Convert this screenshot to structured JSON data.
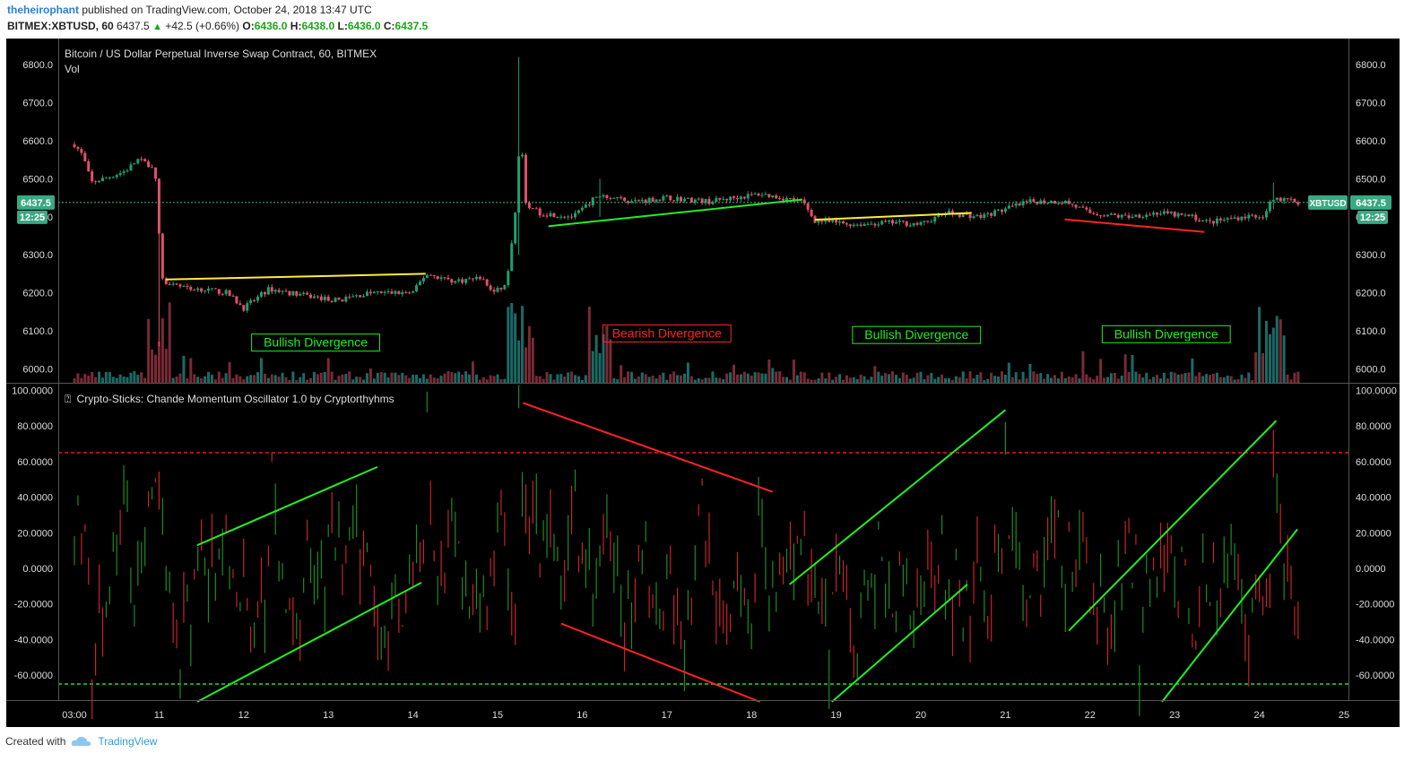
{
  "header": {
    "author": "theheirophant",
    "published_text": "published on TradingView.com, October 24, 2018 13:47 UTC",
    "symbol": "BITMEX:XBTUSD, 60",
    "last_price": "6437.5",
    "change": "+42.5 (+0.66%)",
    "o_label": "O:",
    "o_value": "6436.0",
    "h_label": "H:",
    "h_value": "6438.0",
    "l_label": "L:",
    "l_value": "6436.0",
    "c_label": "C:",
    "c_value": "6437.5"
  },
  "footer": {
    "created_with": "Created with",
    "brand": "TradingView"
  },
  "colors": {
    "up": "#1f9e6f",
    "down": "#e0506a",
    "vol_up": "#1a6b66",
    "vol_down": "#7a2a36",
    "green_line": "#22ee22",
    "red_line": "#ff2222",
    "yellow_line": "#ffee33",
    "bg": "#000000"
  },
  "chart_data": [
    {
      "type": "candlestick",
      "title": "Bitcoin / US Dollar Perpetual Inverse Swap Contract, 60, BITMEX",
      "volume_label": "Vol",
      "price_tag": "6437.5",
      "time_tag": "12:25",
      "symbol_tag": "XBTUSD",
      "x_ticks": [
        "03:00",
        "11",
        "12",
        "13",
        "14",
        "15",
        "16",
        "17",
        "18",
        "19",
        "20",
        "21",
        "22",
        "23",
        "24",
        "25"
      ],
      "y_ticks": [
        "6800.0",
        "6700.0",
        "6600.0",
        "6500.0",
        "6400.0",
        "6300.0",
        "6200.0",
        "6100.0",
        "6000.0"
      ],
      "ylim": [
        5970,
        6840
      ],
      "last_price": 6437.5,
      "price_path": [
        {
          "day": 10.0,
          "price": 6590
        },
        {
          "day": 10.1,
          "price": 6560
        },
        {
          "day": 10.2,
          "price": 6490
        },
        {
          "day": 10.35,
          "price": 6500
        },
        {
          "day": 10.6,
          "price": 6520
        },
        {
          "day": 10.75,
          "price": 6550
        },
        {
          "day": 10.95,
          "price": 6530
        },
        {
          "day": 11.0,
          "price": 6350
        },
        {
          "day": 11.05,
          "price": 6220
        },
        {
          "day": 11.5,
          "price": 6210
        },
        {
          "day": 11.8,
          "price": 6200
        },
        {
          "day": 12.0,
          "price": 6160
        },
        {
          "day": 12.3,
          "price": 6210
        },
        {
          "day": 12.8,
          "price": 6190
        },
        {
          "day": 13.1,
          "price": 6180
        },
        {
          "day": 13.5,
          "price": 6200
        },
        {
          "day": 14.0,
          "price": 6200
        },
        {
          "day": 14.15,
          "price": 6250
        },
        {
          "day": 14.5,
          "price": 6230
        },
        {
          "day": 14.8,
          "price": 6240
        },
        {
          "day": 14.95,
          "price": 6200
        },
        {
          "day": 15.1,
          "price": 6220
        },
        {
          "day": 15.2,
          "price": 6380
        },
        {
          "day": 15.27,
          "price": 6640
        },
        {
          "day": 15.33,
          "price": 6430
        },
        {
          "day": 15.5,
          "price": 6410
        },
        {
          "day": 15.9,
          "price": 6400
        },
        {
          "day": 16.2,
          "price": 6460
        },
        {
          "day": 16.6,
          "price": 6440
        },
        {
          "day": 17.0,
          "price": 6450
        },
        {
          "day": 17.5,
          "price": 6440
        },
        {
          "day": 18.1,
          "price": 6460
        },
        {
          "day": 18.6,
          "price": 6440
        },
        {
          "day": 18.75,
          "price": 6390
        },
        {
          "day": 19.2,
          "price": 6380
        },
        {
          "day": 19.7,
          "price": 6385
        },
        {
          "day": 20.0,
          "price": 6380
        },
        {
          "day": 20.3,
          "price": 6410
        },
        {
          "day": 20.7,
          "price": 6400
        },
        {
          "day": 21.0,
          "price": 6420
        },
        {
          "day": 21.3,
          "price": 6440
        },
        {
          "day": 21.7,
          "price": 6440
        },
        {
          "day": 22.0,
          "price": 6410
        },
        {
          "day": 22.4,
          "price": 6400
        },
        {
          "day": 22.8,
          "price": 6410
        },
        {
          "day": 23.2,
          "price": 6400
        },
        {
          "day": 23.4,
          "price": 6385
        },
        {
          "day": 23.8,
          "price": 6400
        },
        {
          "day": 24.05,
          "price": 6405
        },
        {
          "day": 24.15,
          "price": 6450
        },
        {
          "day": 24.5,
          "price": 6437.5
        }
      ],
      "spikes": [
        {
          "day": 15.27,
          "high": 6820,
          "low": 6300
        },
        {
          "day": 11.0,
          "high": 6480,
          "low": 6060
        },
        {
          "day": 16.2,
          "high": 6500,
          "low": 6400
        },
        {
          "day": 24.15,
          "high": 6490,
          "low": 6420
        }
      ],
      "trendlines": [
        {
          "color": "yellow",
          "from": {
            "day": 11.08,
            "price": 6235
          },
          "to": {
            "day": 14.15,
            "price": 6250
          }
        },
        {
          "color": "green",
          "from": {
            "day": 15.6,
            "price": 6375
          },
          "to": {
            "day": 18.6,
            "price": 6445
          }
        },
        {
          "color": "yellow",
          "from": {
            "day": 18.75,
            "price": 6392
          },
          "to": {
            "day": 20.6,
            "price": 6410
          }
        },
        {
          "color": "red",
          "from": {
            "day": 21.7,
            "price": 6393
          },
          "to": {
            "day": 23.35,
            "price": 6360
          }
        }
      ],
      "annotations": [
        {
          "text": "Bullish Divergence",
          "color": "green",
          "day": 12.85,
          "price": 6068
        },
        {
          "text": "Bearish Divergence",
          "color": "red",
          "day": 17.0,
          "price": 6092
        },
        {
          "text": "Bullish Divergence",
          "color": "green",
          "day": 19.95,
          "price": 6088
        },
        {
          "text": "Bullish Divergence",
          "color": "green",
          "day": 22.9,
          "price": 6090
        }
      ]
    },
    {
      "type": "oscillator",
      "title": "Crypto-Sticks: Chande Momentum Oscillator 1.0 by Cryptorthyhms",
      "title_prefix_glyph": "⍰",
      "title_parts": [
        "Crypto-Sticks",
        ": Chande Momentum Oscillator 1.0 by Cryptorthyhms"
      ],
      "y_ticks": [
        "100.0000",
        "80.0000",
        "60.0000",
        "40.0000",
        "20.0000",
        "0.0000",
        "-20.0000",
        "-40.0000",
        "-60.0000"
      ],
      "ylim": [
        -75,
        100
      ],
      "overbought": 65,
      "oversold": -65,
      "peaks": [
        {
          "day": 14.15,
          "value": 92
        },
        {
          "day": 15.27,
          "value": 95
        },
        {
          "day": 18.1,
          "value": 45
        },
        {
          "day": 21.0,
          "value": 80
        },
        {
          "day": 24.15,
          "value": 75
        },
        {
          "day": 12.35,
          "value": 62
        },
        {
          "day": 10.6,
          "value": 52
        },
        {
          "day": 10.2,
          "value": -65
        },
        {
          "day": 11.25,
          "value": -60
        },
        {
          "day": 22.6,
          "value": -62
        },
        {
          "day": 18.9,
          "value": -55
        }
      ],
      "trendlines": [
        {
          "color": "green",
          "from": {
            "day": 11.45,
            "value": 13
          },
          "to": {
            "day": 13.58,
            "value": 57
          }
        },
        {
          "color": "green",
          "from": {
            "day": 11.45,
            "value": -75
          },
          "to": {
            "day": 14.1,
            "value": -8
          }
        },
        {
          "color": "red",
          "from": {
            "day": 15.3,
            "value": 93
          },
          "to": {
            "day": 18.25,
            "value": 43
          }
        },
        {
          "color": "red",
          "from": {
            "day": 15.75,
            "value": -31
          },
          "to": {
            "day": 18.1,
            "value": -75
          }
        },
        {
          "color": "green",
          "from": {
            "day": 18.45,
            "value": -9
          },
          "to": {
            "day": 21.0,
            "value": 89
          }
        },
        {
          "color": "green",
          "from": {
            "day": 18.95,
            "value": -75
          },
          "to": {
            "day": 20.55,
            "value": -9
          }
        },
        {
          "color": "green",
          "from": {
            "day": 21.75,
            "value": -35
          },
          "to": {
            "day": 24.2,
            "value": 83
          }
        },
        {
          "color": "green",
          "from": {
            "day": 22.85,
            "value": -75
          },
          "to": {
            "day": 24.45,
            "value": 22
          }
        }
      ]
    }
  ]
}
